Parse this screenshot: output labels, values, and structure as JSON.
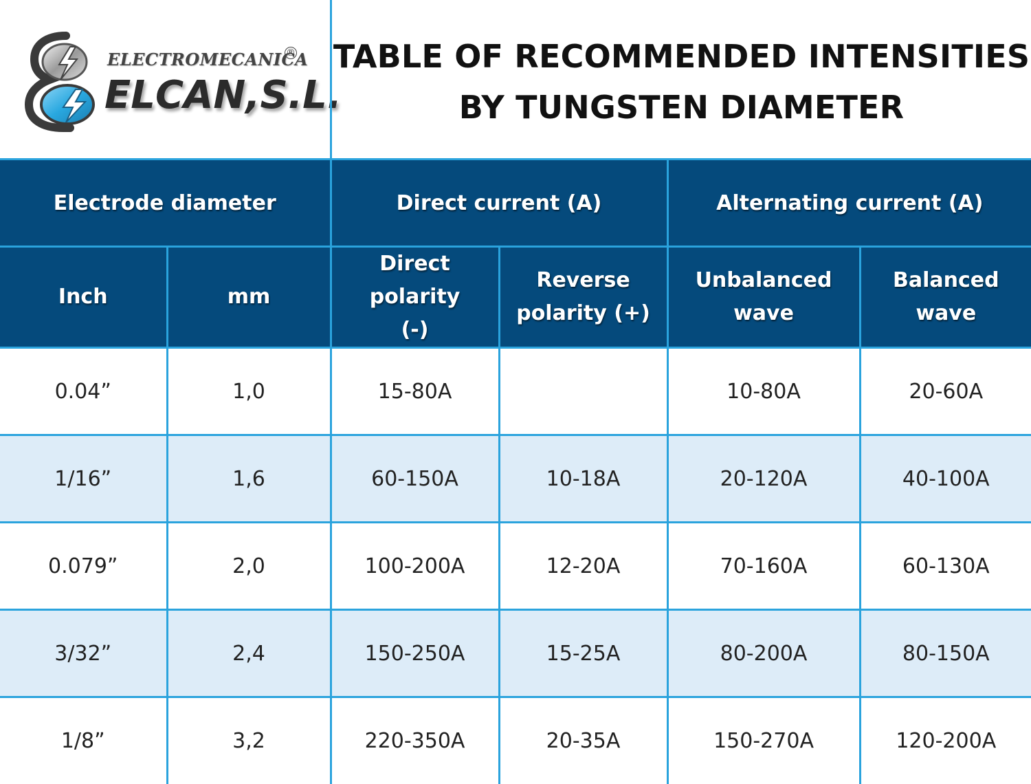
{
  "logo": {
    "top_text": "ELECTROMECANICA",
    "registered_mark": "®",
    "main_text": "ELCAN,S.L."
  },
  "title": {
    "line1": "TABLE OF RECOMMENDED INTENSITIES",
    "line2": "BY TUNGSTEN DIAMETER"
  },
  "colors": {
    "header_bg": "#054a7c",
    "grid_line": "#2aa3dd",
    "row_alt_bg": "#ddecf8",
    "logo_blue": "#29a8e0"
  },
  "table": {
    "group_headers": [
      "Electrode diameter",
      "Direct current (A)",
      "Alternating current (A)"
    ],
    "sub_headers": [
      [
        "Inch"
      ],
      [
        "mm"
      ],
      [
        "Direct polarity",
        "(-)"
      ],
      [
        "Reverse",
        "polarity (+)"
      ],
      [
        "Unbalanced",
        "wave"
      ],
      [
        "Balanced",
        "wave"
      ]
    ],
    "rows": [
      [
        "0.04”",
        "1,0",
        "15-80A",
        "",
        "10-80A",
        "20-60A"
      ],
      [
        "1/16”",
        "1,6",
        "60-150A",
        "10-18A",
        "20-120A",
        "40-100A"
      ],
      [
        "0.079”",
        "2,0",
        "100-200A",
        "12-20A",
        "70-160A",
        "60-130A"
      ],
      [
        "3/32”",
        "2,4",
        "150-250A",
        "15-25A",
        "80-200A",
        "80-150A"
      ],
      [
        "1/8”",
        "3,2",
        "220-350A",
        "20-35A",
        "150-270A",
        "120-200A"
      ]
    ]
  }
}
